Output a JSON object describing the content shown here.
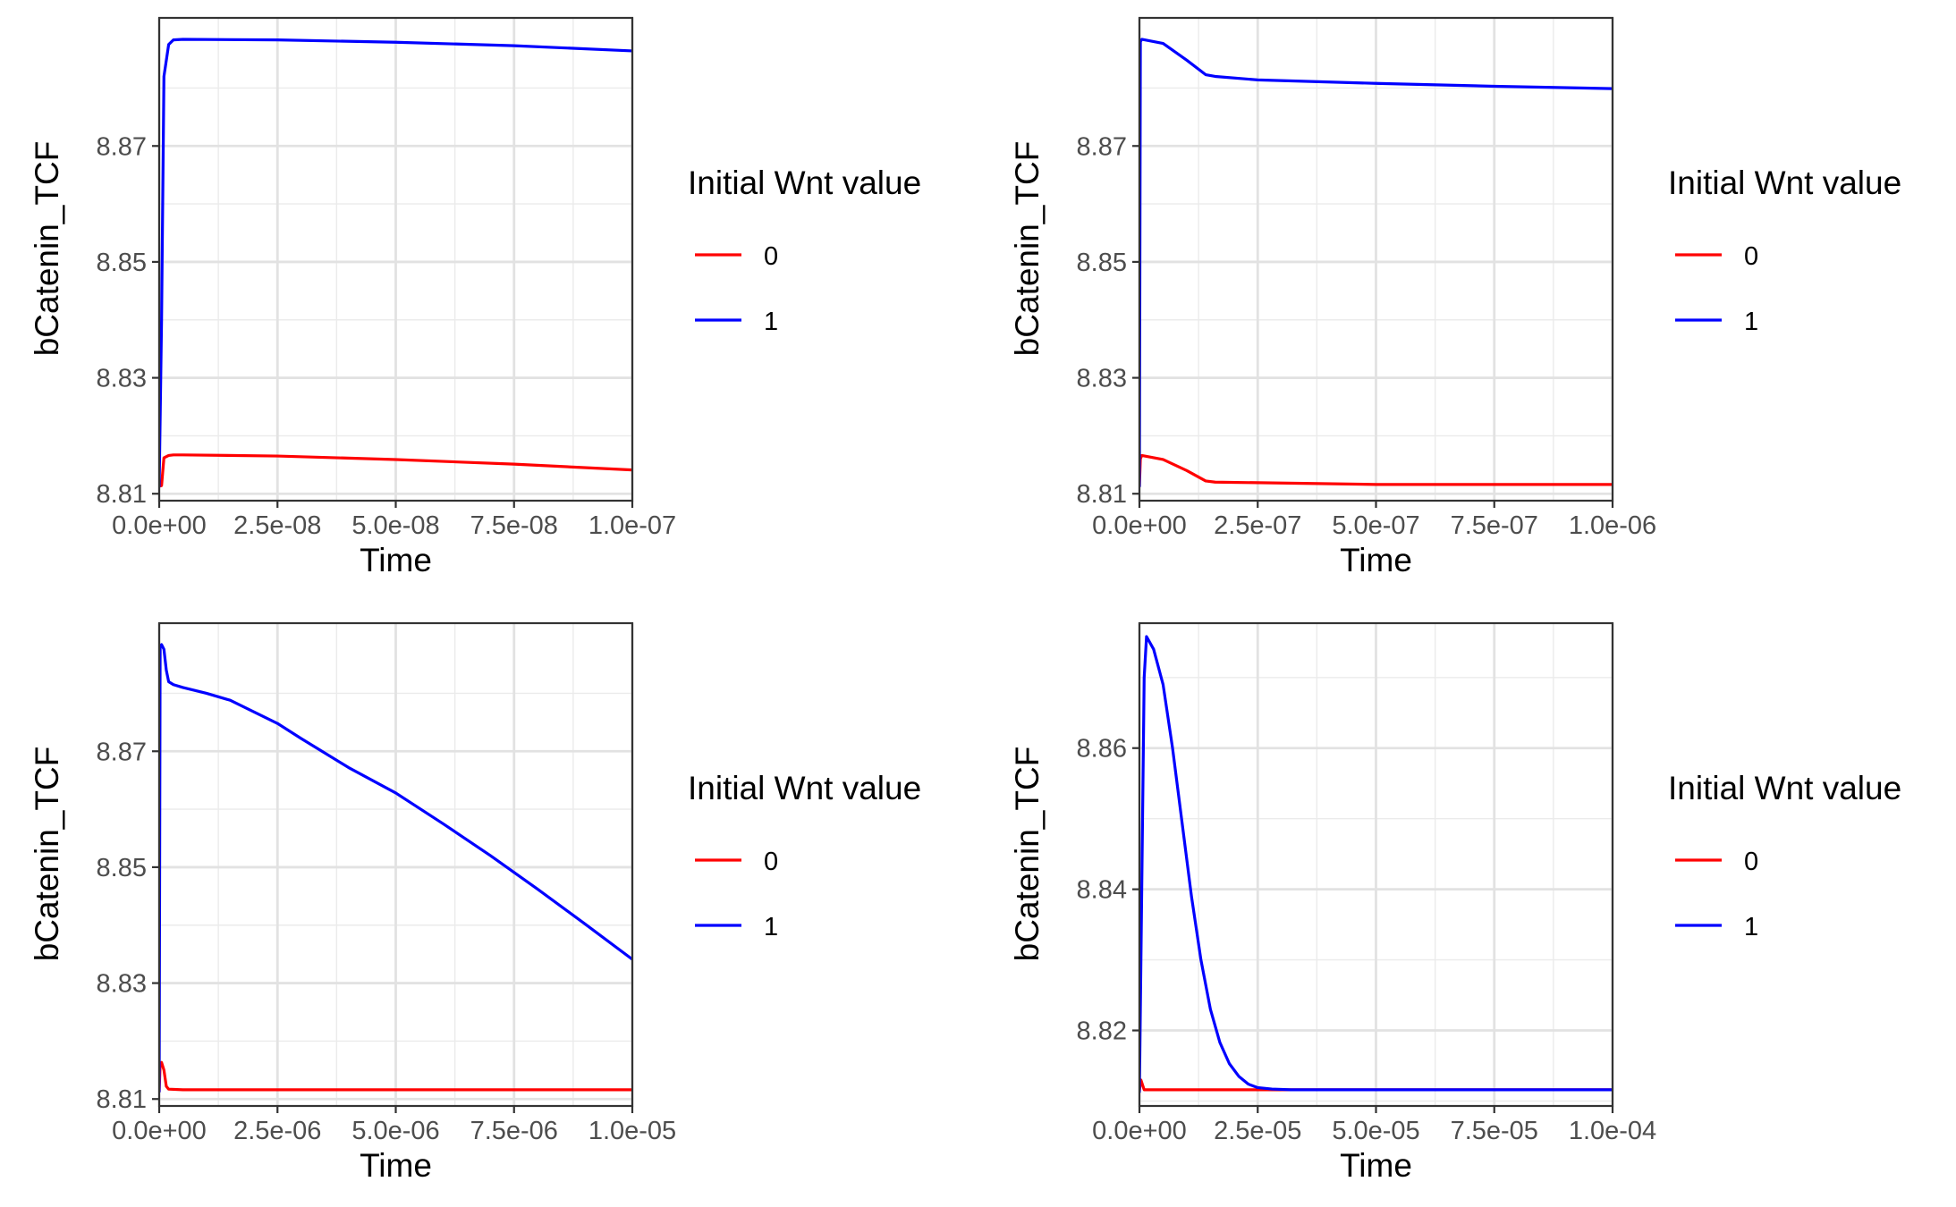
{
  "chart_data": [
    {
      "type": "line",
      "xlabel": "Time",
      "ylabel": "bCatenin_TCF",
      "xlim": [
        0,
        1e-07
      ],
      "ylim": [
        8.8088,
        8.8921
      ],
      "x_ticks": [
        0,
        2.5e-08,
        5e-08,
        7.5e-08,
        1e-07
      ],
      "x_tick_labels": [
        "0.0e+00",
        "2.5e-08",
        "5.0e-08",
        "7.5e-08",
        "1.0e-07"
      ],
      "y_ticks": [
        8.81,
        8.83,
        8.85,
        8.87
      ],
      "y_tick_labels": [
        "8.81",
        "8.83",
        "8.85",
        "8.87"
      ],
      "grid": true,
      "legend": {
        "title": "Initial Wnt value",
        "position": "right"
      },
      "series": [
        {
          "name": "0",
          "color": "#ff0000",
          "x": [
            0,
            5e-10,
            1e-09,
            2e-09,
            3e-09,
            5e-09,
            2.5e-08,
            5e-08,
            7.5e-08,
            1e-07
          ],
          "y": [
            8.8113,
            8.8114,
            8.8162,
            8.8166,
            8.8167,
            8.8167,
            8.8165,
            8.8159,
            8.8151,
            8.8141
          ]
        },
        {
          "name": "1",
          "color": "#0000ff",
          "x": [
            0,
            5e-10,
            1e-09,
            2e-09,
            3e-09,
            5e-09,
            2.5e-08,
            5e-08,
            7.5e-08,
            1e-07
          ],
          "y": [
            8.8113,
            8.84,
            8.882,
            8.8875,
            8.8883,
            8.8884,
            8.8883,
            8.8879,
            8.8873,
            8.8864
          ]
        }
      ]
    },
    {
      "type": "line",
      "xlabel": "Time",
      "ylabel": "bCatenin_TCF",
      "xlim": [
        0,
        1e-06
      ],
      "ylim": [
        8.8088,
        8.8921
      ],
      "x_ticks": [
        0,
        2.5e-07,
        5e-07,
        7.5e-07,
        1e-06
      ],
      "x_tick_labels": [
        "0.0e+00",
        "2.5e-07",
        "5.0e-07",
        "7.5e-07",
        "1.0e-06"
      ],
      "y_ticks": [
        8.81,
        8.83,
        8.85,
        8.87
      ],
      "y_tick_labels": [
        "8.81",
        "8.83",
        "8.85",
        "8.87"
      ],
      "grid": true,
      "legend": {
        "title": "Initial Wnt value",
        "position": "right"
      },
      "series": [
        {
          "name": "0",
          "color": "#ff0000",
          "x": [
            0,
            2e-09,
            5e-09,
            5e-08,
            1e-07,
            1.4e-07,
            1.6e-07,
            2.5e-07,
            5e-07,
            7.5e-07,
            1e-06
          ],
          "y": [
            8.8113,
            8.816,
            8.8166,
            8.8159,
            8.814,
            8.8122,
            8.812,
            8.8119,
            8.8116,
            8.8116,
            8.8116
          ]
        },
        {
          "name": "1",
          "color": "#0000ff",
          "x": [
            0,
            2e-09,
            5e-09,
            5e-08,
            1e-07,
            1.4e-07,
            1.6e-07,
            2.5e-07,
            5e-07,
            7.5e-07,
            1e-06
          ],
          "y": [
            8.8113,
            8.888,
            8.8884,
            8.8877,
            8.8848,
            8.8823,
            8.882,
            8.8814,
            8.8808,
            8.8803,
            8.8799
          ]
        }
      ]
    },
    {
      "type": "line",
      "xlabel": "Time",
      "ylabel": "bCatenin_TCF",
      "xlim": [
        0,
        1e-05
      ],
      "ylim": [
        8.8088,
        8.8921
      ],
      "x_ticks": [
        0,
        2.5e-06,
        5e-06,
        7.5e-06,
        1e-05
      ],
      "x_tick_labels": [
        "0.0e+00",
        "2.5e-06",
        "5.0e-06",
        "7.5e-06",
        "1.0e-05"
      ],
      "y_ticks": [
        8.81,
        8.83,
        8.85,
        8.87
      ],
      "y_tick_labels": [
        "8.81",
        "8.83",
        "8.85",
        "8.87"
      ],
      "grid": true,
      "legend": {
        "title": "Initial Wnt value",
        "position": "right"
      },
      "series": [
        {
          "name": "0",
          "color": "#ff0000",
          "x": [
            0,
            2e-08,
            5e-08,
            1e-07,
            1.5e-07,
            2e-07,
            5e-07,
            1e-05
          ],
          "y": [
            8.8113,
            8.816,
            8.8163,
            8.815,
            8.8122,
            8.8117,
            8.8116,
            8.8116
          ]
        },
        {
          "name": "1",
          "color": "#0000ff",
          "x": [
            0,
            2e-08,
            5e-08,
            1e-07,
            1.5e-07,
            2e-07,
            3e-07,
            5e-07,
            1e-06,
            1.5e-06,
            2e-06,
            2.5e-06,
            3e-06,
            4e-06,
            5e-06,
            6e-06,
            7e-06,
            8e-06,
            9e-06,
            1e-05
          ],
          "y": [
            8.8113,
            8.888,
            8.8884,
            8.8876,
            8.884,
            8.882,
            8.8815,
            8.881,
            8.88,
            8.8788,
            8.8768,
            8.8748,
            8.8722,
            8.8672,
            8.8628,
            8.8575,
            8.852,
            8.8462,
            8.8402,
            8.8341
          ]
        }
      ]
    },
    {
      "type": "line",
      "xlabel": "Time",
      "ylabel": "bCatenin_TCF",
      "xlim": [
        0,
        0.0001
      ],
      "ylim": [
        8.8093,
        8.8777
      ],
      "x_ticks": [
        0,
        2.5e-05,
        5e-05,
        7.5e-05,
        0.0001
      ],
      "x_tick_labels": [
        "0.0e+00",
        "2.5e-05",
        "5.0e-05",
        "7.5e-05",
        "1.0e-04"
      ],
      "y_ticks": [
        8.82,
        8.84,
        8.86
      ],
      "y_tick_labels": [
        "8.82",
        "8.84",
        "8.86"
      ],
      "grid": true,
      "legend": {
        "title": "Initial Wnt value",
        "position": "right"
      },
      "series": [
        {
          "name": "0",
          "color": "#ff0000",
          "x": [
            0,
            3e-07,
            1e-06,
            0.0001
          ],
          "y": [
            8.8115,
            8.813,
            8.8116,
            8.8116
          ]
        },
        {
          "name": "1",
          "color": "#0000ff",
          "x": [
            0,
            1e-06,
            1.5e-06,
            3e-06,
            5e-06,
            7e-06,
            9e-06,
            1.1e-05,
            1.3e-05,
            1.5e-05,
            1.7e-05,
            1.9e-05,
            2.1e-05,
            2.3e-05,
            2.5e-05,
            2.8e-05,
            3.2e-05,
            4e-05,
            6e-05,
            0.0001
          ],
          "y": [
            8.8113,
            8.87,
            8.8758,
            8.874,
            8.869,
            8.86,
            8.8495,
            8.839,
            8.83,
            8.823,
            8.8183,
            8.8153,
            8.8135,
            8.8124,
            8.8119,
            8.8117,
            8.8116,
            8.8116,
            8.8116,
            8.8116
          ]
        }
      ]
    }
  ]
}
